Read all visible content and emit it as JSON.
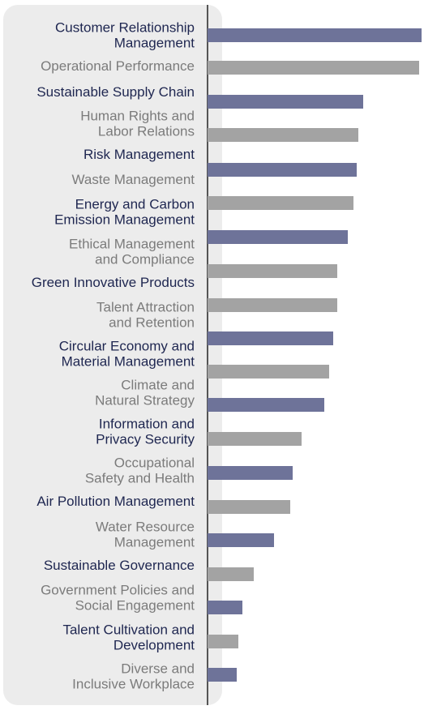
{
  "chart_data": {
    "type": "bar",
    "orientation": "horizontal",
    "colors": {
      "dark": "#6e7399",
      "light": "#a3a3a3",
      "dark_text": "#1e2650",
      "light_text": "#7b7b7b",
      "axis": "#555555",
      "panel": "#ececec"
    },
    "categories": [
      "Customer Relationship Management",
      "Operational Performance",
      "Sustainable Supply Chain",
      "Human Rights and Labor Relations",
      "Risk Management",
      "Waste Management",
      "Energy and Carbon Emission Management",
      "Ethical Management and Compliance",
      "Green Innovative Products",
      "Talent Attraction and Retention",
      "Circular Economy and Material Management",
      "Climate and Natural Strategy",
      "Information and Privacy Security",
      "Occupational Safety and Health",
      "Air Pollution Management",
      "Water Resource Management",
      "Sustainable Governance",
      "Government Policies and Social Engagement",
      "Talent Cultivation and Development",
      "Diverse and Inclusive Workplace"
    ],
    "label_lines": [
      [
        "Customer Relationship",
        "Management"
      ],
      [
        "Operational Performance"
      ],
      [
        "Sustainable Supply Chain"
      ],
      [
        "Human Rights and",
        "Labor Relations"
      ],
      [
        "Risk Management"
      ],
      [
        "Waste Management"
      ],
      [
        "Energy and Carbon",
        "Emission Management"
      ],
      [
        "Ethical Management",
        "and Compliance"
      ],
      [
        "Green Innovative Products"
      ],
      [
        "Talent Attraction",
        "and Retention"
      ],
      [
        "Circular Economy and",
        "Material Management"
      ],
      [
        "Climate and",
        "Natural Strategy"
      ],
      [
        "Information and",
        "Privacy Security"
      ],
      [
        "Occupational",
        "Safety and Health"
      ],
      [
        "Air Pollution Management"
      ],
      [
        "Water Resource",
        "Management"
      ],
      [
        "Sustainable Governance"
      ],
      [
        "Government Policies and",
        "Social Engagement"
      ],
      [
        "Talent Cultivation and",
        "Development"
      ],
      [
        "Diverse and",
        "Inclusive Workplace"
      ]
    ],
    "values": [
      264,
      261,
      192,
      186,
      184,
      180,
      173,
      160,
      160,
      155,
      150,
      144,
      116,
      105,
      102,
      82,
      57,
      43,
      38,
      36
    ],
    "value_unit": "relative bar length (unlabeled axis)",
    "style": [
      "dark",
      "light",
      "dark",
      "light",
      "dark",
      "light",
      "dark",
      "light",
      "light",
      "dark",
      "light",
      "dark",
      "light",
      "dark",
      "light",
      "dark",
      "light",
      "dark",
      "light",
      "dark"
    ],
    "label_style": [
      "dark",
      "light",
      "dark",
      "light",
      "dark",
      "light",
      "dark",
      "light",
      "dark",
      "light",
      "dark",
      "light",
      "dark",
      "light",
      "dark",
      "light",
      "dark",
      "light",
      "dark",
      "light"
    ],
    "title": "",
    "xlabel": "",
    "ylabel": "",
    "grid": false,
    "legend": "none"
  }
}
